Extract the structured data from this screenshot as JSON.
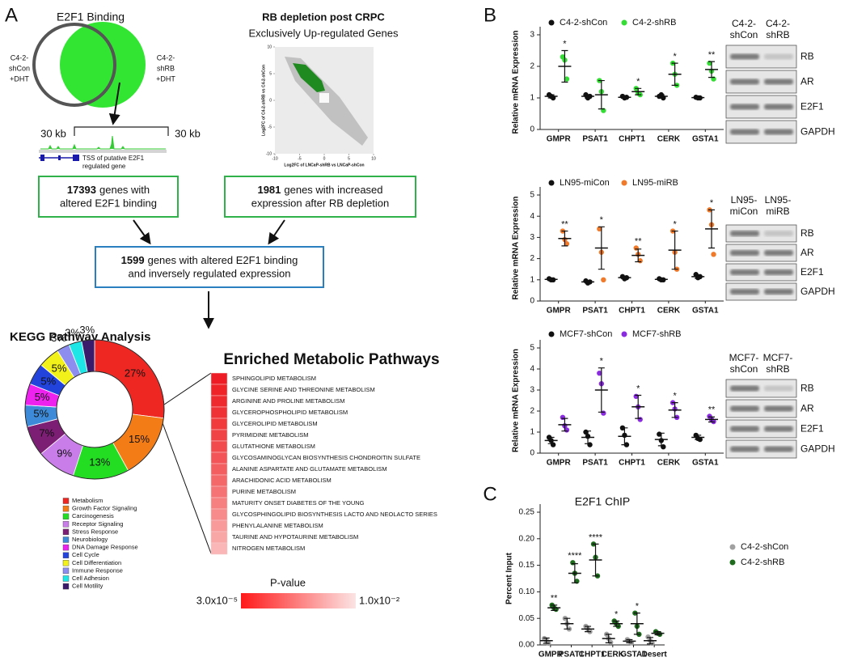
{
  "panel_a": {
    "label": "A",
    "venn": {
      "title": "E2F1 Binding",
      "left_label": [
        "C4-2-",
        "shCon",
        "+DHT"
      ],
      "right_label": [
        "C4-2-",
        "shRB",
        "+DHT"
      ]
    },
    "track": {
      "left_scale": "30 kb",
      "right_scale": "30 kb",
      "caption": [
        "TSS of putative E2F1",
        "regulated gene"
      ]
    },
    "scatter": {
      "title": "RB depletion post CRPC",
      "subtitle": "Exclusively Up-regulated Genes",
      "x_label": "Log2FC of LNCaP-shRB vs LNCaP-shCon",
      "y_label": "Log2FC of C4-2-shRB vs C4-2-shCon",
      "xlim": [
        -10,
        10
      ],
      "ylim": [
        -10,
        10
      ],
      "xticks": [
        -10,
        -5,
        0,
        5,
        10
      ],
      "yticks": [
        -10,
        -5,
        0,
        5,
        10
      ]
    },
    "boxes": [
      {
        "count": "17393",
        "lines": [
          "genes with",
          "altered E2F1 binding"
        ]
      },
      {
        "count": "1981",
        "lines": [
          "genes with increased",
          "expression after RB depletion"
        ]
      },
      {
        "count": "1599",
        "lines": [
          "genes with altered E2F1 binding",
          "and inversely regulated expression"
        ]
      }
    ]
  },
  "panel_b": {
    "label": "B",
    "blots": [
      {
        "columns": [
          [
            "C4-2-",
            "shCon"
          ],
          [
            "C4-2-",
            "shRB"
          ]
        ],
        "rows": [
          "RB",
          "AR",
          "E2F1",
          "GAPDH"
        ]
      },
      {
        "columns": [
          [
            "LN95-",
            "miCon"
          ],
          [
            "LN95-",
            "miRB"
          ]
        ],
        "rows": [
          "RB",
          "AR",
          "E2F1",
          "GAPDH"
        ]
      },
      {
        "columns": [
          [
            "MCF7-",
            "shCon"
          ],
          [
            "MCF7-",
            "shRB"
          ]
        ],
        "rows": [
          "RB",
          "AR",
          "E2F1",
          "GAPDH"
        ]
      }
    ]
  },
  "panel_c": {
    "label": "C"
  },
  "chart_data": [
    {
      "type": "pie",
      "title": "KEGG Pathway Analysis",
      "donut": true,
      "categories": [
        "Metabolism",
        "Growth Factor Signaling",
        "Carcinogenesis",
        "Receptor Signaling",
        "Stress Response",
        "Neurobiology",
        "DNA Damage Response",
        "Cell Cycle",
        "Cell Differentiation",
        "Immune Response",
        "Cell Adhesion",
        "Cell Motility"
      ],
      "values": [
        27,
        15,
        13,
        9,
        7,
        5,
        5,
        5,
        5,
        3,
        3,
        3
      ],
      "value_labels": [
        "27%",
        "15%",
        "13%",
        "9%",
        "7%",
        "5%",
        "5%",
        "5%",
        "5%",
        "3%",
        "3%",
        "3%"
      ],
      "colors": [
        "#ee2722",
        "#f47c16",
        "#22dd22",
        "#c87de8",
        "#7b1e74",
        "#3d8bd8",
        "#ee22ee",
        "#2244dd",
        "#f2f21a",
        "#8d8df0",
        "#1ee6e6",
        "#3a1a6a"
      ]
    },
    {
      "type": "heatmap",
      "title": "Enriched Metabolic Pathways",
      "categories": [
        "SPHINGOLIPID METABOLISM",
        "GLYCINE SERINE AND THREONINE METABOLISM",
        "ARGININE AND PROLINE METABOLISM",
        "GLYCEROPHOSPHOLIPID METABOLISM",
        "GLYCEROLIPID METABOLISM",
        "PYRIMIDINE METABOLISM",
        "GLUTATHIONE METABOLISM",
        "GLYCOSAMINOGLYCAN BIOSYNTHESIS CHONDROITIN SULFATE",
        "ALANINE ASPARTATE AND GLUTAMATE METABOLISM",
        "ARACHIDONIC ACID METABOLISM",
        "PURINE METABOLISM",
        "MATURITY ONSET DIABETES OF THE YOUNG",
        "GLYCOSPHINGOLIPID BIOSYNTHESIS LACTO AND NEOLACTO SERIES",
        "PHENYLALANINE METABOLISM",
        "TAURINE AND HYPOTAURINE METABOLISM",
        "NITROGEN METABOLISM"
      ],
      "colors": [
        "#ee1c25",
        "#ee2429",
        "#ef2a2f",
        "#ef3235",
        "#f03a3c",
        "#f04346",
        "#f14b4e",
        "#f25457",
        "#f35e60",
        "#f4686a",
        "#f57375",
        "#f67f80",
        "#f78b8c",
        "#f8999a",
        "#f9a6a7",
        "#fab5b6"
      ],
      "colorbar": {
        "title": "P-value",
        "low_label": "3.0x10⁻⁵",
        "high_label": "1.0x10⁻²",
        "low_color": "#ff1a1a",
        "high_color": "#fbe4e4"
      }
    },
    {
      "type": "dot",
      "y_label": "Relative mRNA Expression",
      "categories": [
        "GMPR",
        "PSAT1",
        "CHPT1",
        "CERK",
        "GSTA1"
      ],
      "ylim": [
        0,
        3
      ],
      "yticks": [
        0,
        1,
        2,
        3
      ],
      "series": [
        {
          "name": "C4-2-shCon",
          "color": "#111111",
          "values": [
            [
              1.1,
              1.05,
              1.0
            ],
            [
              1.1,
              1.0,
              1.05
            ],
            [
              1.05,
              1.0,
              1.02
            ],
            [
              1.05,
              1.1,
              1.0
            ],
            [
              1.02,
              1.0,
              1.0
            ]
          ],
          "mean": [
            1.05,
            1.05,
            1.02,
            1.05,
            1.01
          ],
          "sd": [
            0.05,
            0.05,
            0.03,
            0.05,
            0.02
          ]
        },
        {
          "name": "C4-2-shRB",
          "color": "#33dd33",
          "values": [
            [
              2.3,
              2.2,
              1.6
            ],
            [
              1.55,
              1.2,
              0.6
            ],
            [
              1.3,
              1.15,
              1.1
            ],
            [
              2.1,
              1.75,
              1.4
            ],
            [
              2.1,
              1.85,
              1.6
            ]
          ],
          "mean": [
            2.0,
            1.1,
            1.2,
            1.75,
            1.9
          ],
          "sd": [
            0.5,
            0.45,
            0.1,
            0.35,
            0.25
          ]
        }
      ],
      "stars": [
        "*",
        null,
        "*",
        "*",
        "**"
      ]
    },
    {
      "type": "dot",
      "y_label": "Relative mRNA Expression",
      "categories": [
        "GMPR",
        "PSAT1",
        "CHPT1",
        "CERK",
        "GSTA1"
      ],
      "ylim": [
        0,
        5
      ],
      "yticks": [
        0,
        1,
        2,
        3,
        4,
        5
      ],
      "series": [
        {
          "name": "LN95-miCon",
          "color": "#111111",
          "values": [
            [
              1.05,
              1.0,
              1.0
            ],
            [
              0.95,
              0.85,
              0.9
            ],
            [
              1.15,
              1.05,
              1.1
            ],
            [
              1.05,
              1.0,
              1.0
            ],
            [
              1.25,
              1.1,
              1.15
            ]
          ],
          "mean": [
            1.02,
            0.9,
            1.1,
            1.02,
            1.15
          ],
          "sd": [
            0.03,
            0.05,
            0.05,
            0.03,
            0.08
          ]
        },
        {
          "name": "LN95-miRB",
          "color": "#f07a2a",
          "values": [
            [
              3.3,
              2.9,
              2.7
            ],
            [
              3.4,
              2.3,
              1.0
            ],
            [
              2.5,
              2.2,
              1.9
            ],
            [
              3.3,
              2.3,
              1.5
            ],
            [
              4.3,
              3.6,
              2.2
            ]
          ],
          "mean": [
            2.95,
            2.5,
            2.15,
            2.4,
            3.4
          ],
          "sd": [
            0.35,
            1.0,
            0.3,
            0.9,
            0.9
          ]
        }
      ],
      "stars": [
        "**",
        "*",
        "**",
        "*",
        "*"
      ]
    },
    {
      "type": "dot",
      "y_label": "Relative mRNA Expression",
      "categories": [
        "GMPR",
        "PSAT1",
        "CHPT1",
        "CERK",
        "GSTA1"
      ],
      "ylim": [
        0,
        5
      ],
      "yticks": [
        0,
        1,
        2,
        3,
        4,
        5
      ],
      "series": [
        {
          "name": "MCF7-shCon",
          "color": "#111111",
          "values": [
            [
              0.75,
              0.6,
              0.4
            ],
            [
              1.0,
              0.8,
              0.4
            ],
            [
              1.2,
              0.85,
              0.4
            ],
            [
              0.9,
              0.6,
              0.3
            ],
            [
              0.85,
              0.7,
              0.65
            ]
          ],
          "mean": [
            0.6,
            0.75,
            0.8,
            0.65,
            0.75
          ],
          "sd": [
            0.15,
            0.3,
            0.4,
            0.3,
            0.1
          ]
        },
        {
          "name": "MCF7-shRB",
          "color": "#8a2be2",
          "values": [
            [
              1.7,
              1.3,
              1.1
            ],
            [
              3.8,
              3.3,
              1.9
            ],
            [
              2.7,
              2.2,
              1.6
            ],
            [
              2.4,
              2.1,
              1.7
            ],
            [
              1.75,
              1.6,
              1.5
            ]
          ],
          "mean": [
            1.35,
            3.0,
            2.2,
            2.05,
            1.6
          ],
          "sd": [
            0.3,
            1.05,
            0.55,
            0.35,
            0.12
          ]
        }
      ],
      "stars": [
        null,
        "*",
        "*",
        "*",
        "**"
      ]
    },
    {
      "type": "dot",
      "title": "E2F1 ChIP",
      "y_label": "Percent Input",
      "legend": "right",
      "categories": [
        "GMPR",
        "PSAT1",
        "CHPT1",
        "CERK",
        "GSTA1",
        "Desert"
      ],
      "ylim": [
        0,
        0.25
      ],
      "yticks": [
        {
          "value": 0,
          "label": "0.00"
        },
        0.05,
        {
          "value": 0.1,
          "label": "0.10"
        },
        0.15,
        {
          "value": 0.2,
          "label": "0.20"
        },
        0.25
      ],
      "series": [
        {
          "name": "C4-2-shCon",
          "color": "#a0a0a0",
          "values": [
            [
              0.012,
              0.008,
              0.003
            ],
            [
              0.05,
              0.04,
              0.03
            ],
            [
              0.035,
              0.03,
              0.025
            ],
            [
              0.02,
              0.012,
              0.005
            ],
            [
              0.01,
              0.007,
              0.004
            ],
            [
              0.015,
              0.008,
              0.003
            ]
          ],
          "mean": [
            0.008,
            0.04,
            0.03,
            0.012,
            0.007,
            0.008
          ],
          "sd": [
            0.005,
            0.01,
            0.005,
            0.008,
            0.003,
            0.006
          ]
        },
        {
          "name": "C4-2-shRB",
          "color": "#1e6b1e",
          "values": [
            [
              0.075,
              0.07,
              0.067
            ],
            [
              0.155,
              0.135,
              0.12
            ],
            [
              0.19,
              0.165,
              0.13
            ],
            [
              0.045,
              0.04,
              0.035
            ],
            [
              0.06,
              0.035,
              0.02
            ],
            [
              0.025,
              0.022,
              0.02
            ]
          ],
          "mean": [
            0.07,
            0.135,
            0.16,
            0.04,
            0.04,
            0.022
          ],
          "sd": [
            0.005,
            0.018,
            0.03,
            0.005,
            0.02,
            0.003
          ]
        }
      ],
      "stars": [
        "**",
        "****",
        "****",
        "*",
        "*",
        null
      ]
    }
  ]
}
